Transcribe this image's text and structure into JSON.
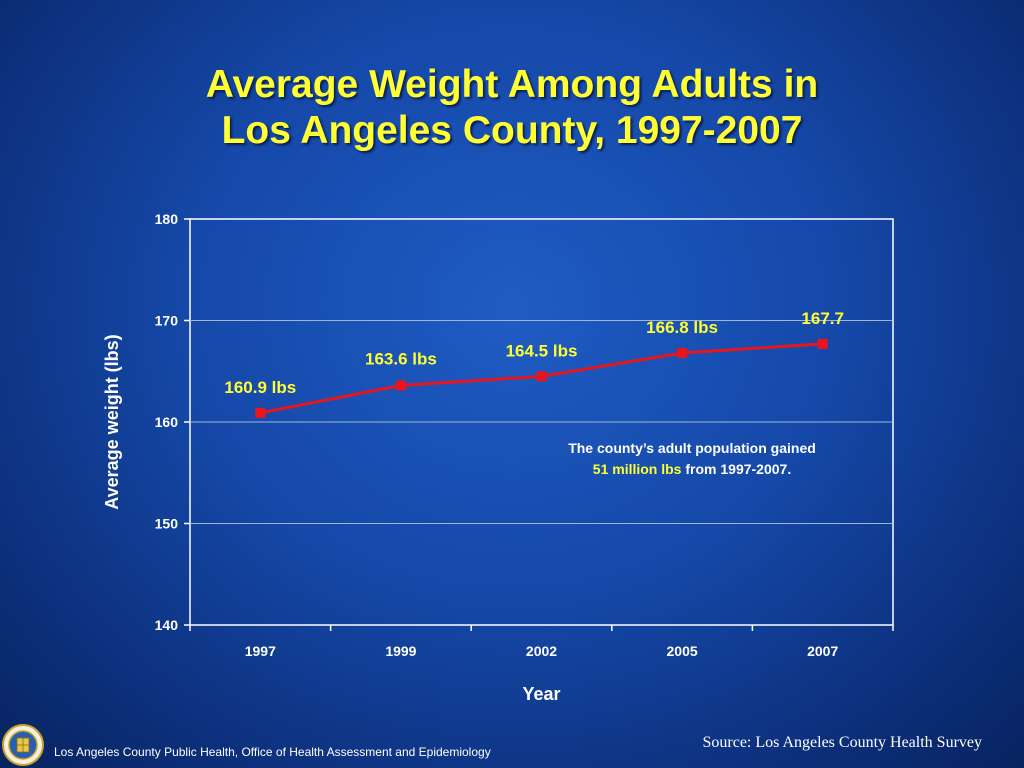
{
  "title": {
    "line1": "Average Weight Among Adults in",
    "line2": "Los Angeles County, 1997-2007"
  },
  "chart_data": {
    "type": "line",
    "categories": [
      "1997",
      "1999",
      "2002",
      "2005",
      "2007"
    ],
    "series": [
      {
        "values": [
          160.9,
          163.6,
          164.5,
          166.8,
          167.7
        ],
        "labels": [
          "160.9 lbs",
          "163.6 lbs",
          "164.5 lbs",
          "166.8 lbs",
          "167.7"
        ],
        "color": "#e8161c"
      }
    ],
    "xlabel": "Year",
    "ylabel": "Average weight (lbs)",
    "ylim": [
      140,
      180
    ],
    "yticks": [
      140,
      150,
      160,
      170,
      180
    ],
    "grid": true,
    "legend": "none",
    "label_color": "#ffff33",
    "annotation": {
      "line1": "The county’s adult population gained",
      "highlight": "51 million lbs",
      "rest": " from 1997-2007."
    }
  },
  "footer": {
    "agency": "Los Angeles County Public Health, Office of Health Assessment and Epidemiology",
    "source": "Source: Los Angeles County Health Survey"
  },
  "icons": {
    "seal": "county-seal-icon"
  }
}
